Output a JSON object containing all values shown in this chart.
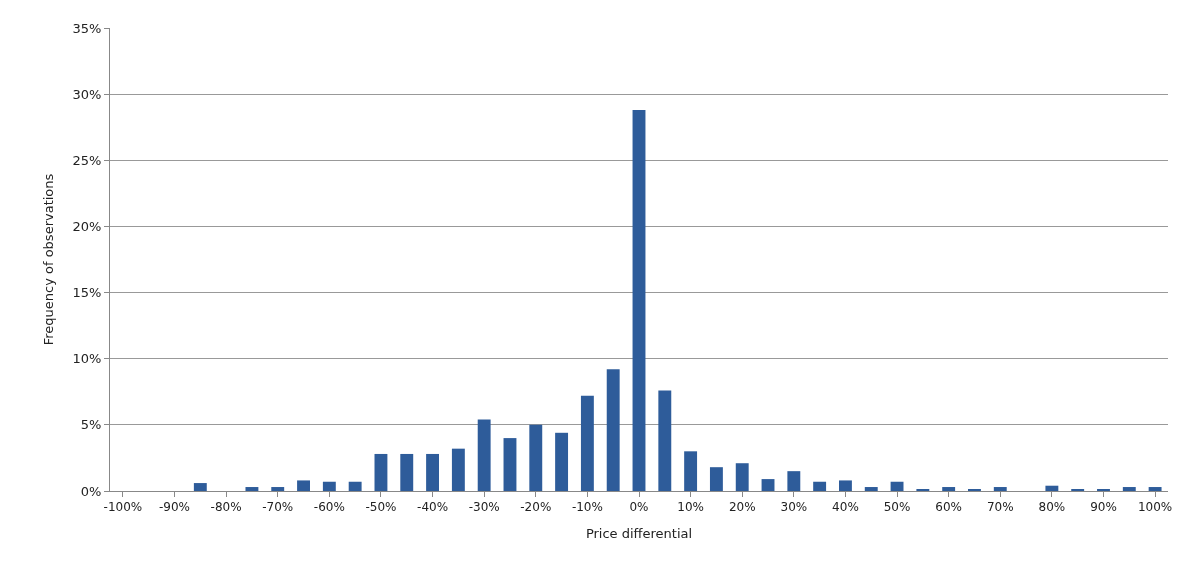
{
  "chart_data": {
    "type": "bar",
    "xlabel": "Price differential",
    "ylabel": "Frequency of observations",
    "categories": [
      "-100%",
      null,
      "-90%",
      null,
      "-80%",
      null,
      "-70%",
      null,
      "-60%",
      null,
      "-50%",
      null,
      "-40%",
      null,
      "-30%",
      null,
      "-20%",
      null,
      "-10%",
      null,
      "0%",
      null,
      "10%",
      null,
      "20%",
      null,
      "30%",
      null,
      "40%",
      null,
      "50%",
      null,
      "60%",
      null,
      "70%",
      null,
      "80%",
      null,
      "90%",
      null,
      "100%"
    ],
    "values": [
      0,
      0,
      0,
      0.6,
      0,
      0.3,
      0.3,
      0.8,
      0.7,
      0.7,
      2.8,
      2.8,
      2.8,
      3.2,
      5.4,
      4.0,
      5.0,
      4.4,
      7.2,
      9.2,
      28.8,
      7.6,
      3.0,
      1.8,
      2.1,
      0.9,
      1.5,
      0.7,
      0.8,
      0.3,
      0.7,
      0.15,
      0.3,
      0.15,
      0.3,
      0,
      0.4,
      0.15,
      0.15,
      0.3,
      0.3
    ],
    "color": "#2e5c9a",
    "ylim": [
      0,
      35
    ],
    "yticks": [
      {
        "value": 0,
        "label": "0%"
      },
      {
        "value": 5,
        "label": "5%"
      },
      {
        "value": 10,
        "label": "10%"
      },
      {
        "value": 15,
        "label": "15%"
      },
      {
        "value": 20,
        "label": "20%"
      },
      {
        "value": 25,
        "label": "25%"
      },
      {
        "value": 30,
        "label": "30%"
      },
      {
        "value": 35,
        "label": "35%"
      }
    ],
    "grid": "y",
    "legend": false
  }
}
